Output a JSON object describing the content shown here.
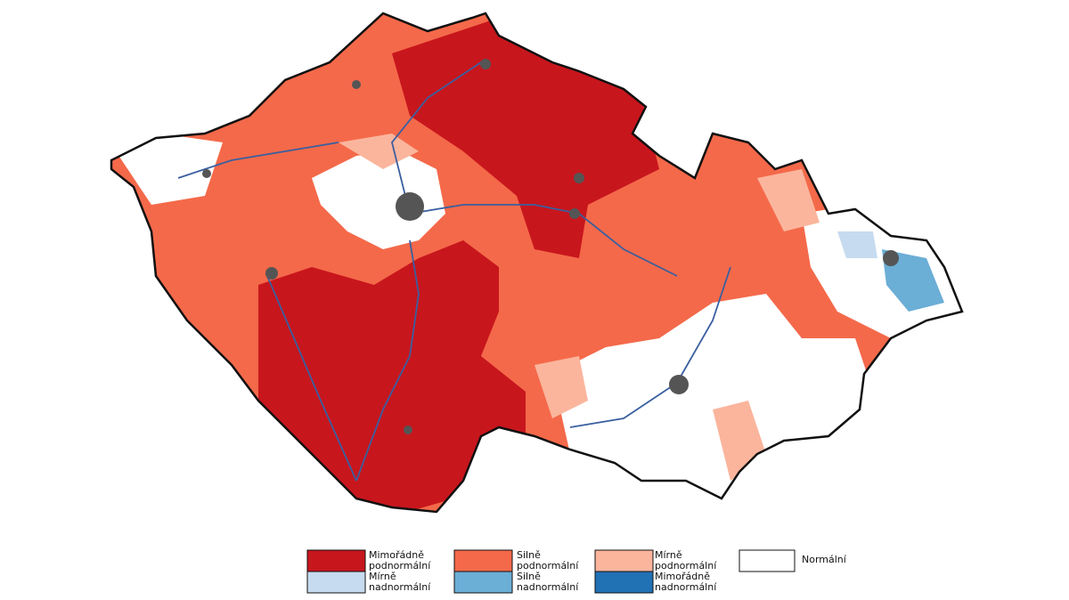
{
  "legend": [
    {
      "lines": [
        "Mimořádně",
        "podnormální"
      ],
      "color": "#c8161d"
    },
    {
      "lines": [
        "Silně",
        "podnormální"
      ],
      "color": "#f4694a"
    },
    {
      "lines": [
        "Mírně",
        "podnormální"
      ],
      "color": "#fbb59d"
    },
    {
      "lines": [
        "Normální"
      ],
      "color": "#ffffff"
    },
    {
      "lines": [
        "Mírně",
        "nadnormální"
      ],
      "color": "#c6dbef"
    },
    {
      "lines": [
        "Silně",
        "nadnormální"
      ],
      "color": "#6baed6"
    },
    {
      "lines": [
        "Mimořádně",
        "nadnormální"
      ],
      "color": "#2171b5"
    }
  ]
}
